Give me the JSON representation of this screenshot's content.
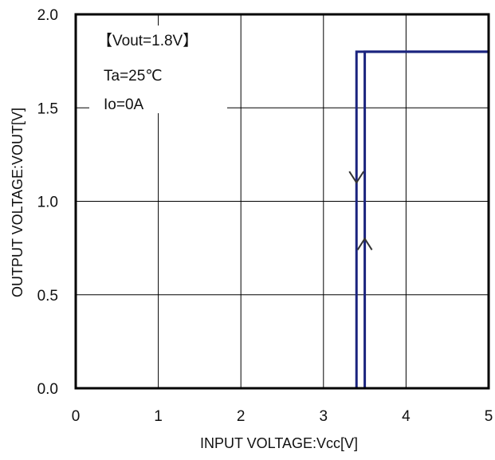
{
  "chart_data": {
    "type": "line",
    "xlabel": "INPUT VOLTAGE:Vcc[V]",
    "ylabel": "OUTPUT VOLTAGE:VOUT[V]",
    "xlim": [
      0,
      5
    ],
    "ylim": [
      0,
      2.0
    ],
    "x_ticks": [
      "0",
      "1",
      "2",
      "3",
      "4",
      "5"
    ],
    "y_ticks": [
      "0.0",
      "0.5",
      "1.0",
      "1.5",
      "2.0"
    ],
    "grid": true,
    "series_color": "#1a237e",
    "series": [
      {
        "x": [
          0,
          3.4,
          3.4,
          5
        ],
        "y": [
          0,
          0,
          1.8,
          1.8
        ]
      },
      {
        "x": [
          0,
          3.5,
          3.5,
          5
        ],
        "y": [
          0,
          0,
          1.8,
          1.8
        ]
      }
    ],
    "annotations": [
      "【Vout=1.8V】",
      "Ta=25℃",
      "Io=0A"
    ],
    "arrows": [
      {
        "x": 3.4,
        "y": 1.1,
        "direction": "down"
      },
      {
        "x": 3.5,
        "y": 0.8,
        "direction": "up"
      }
    ]
  }
}
